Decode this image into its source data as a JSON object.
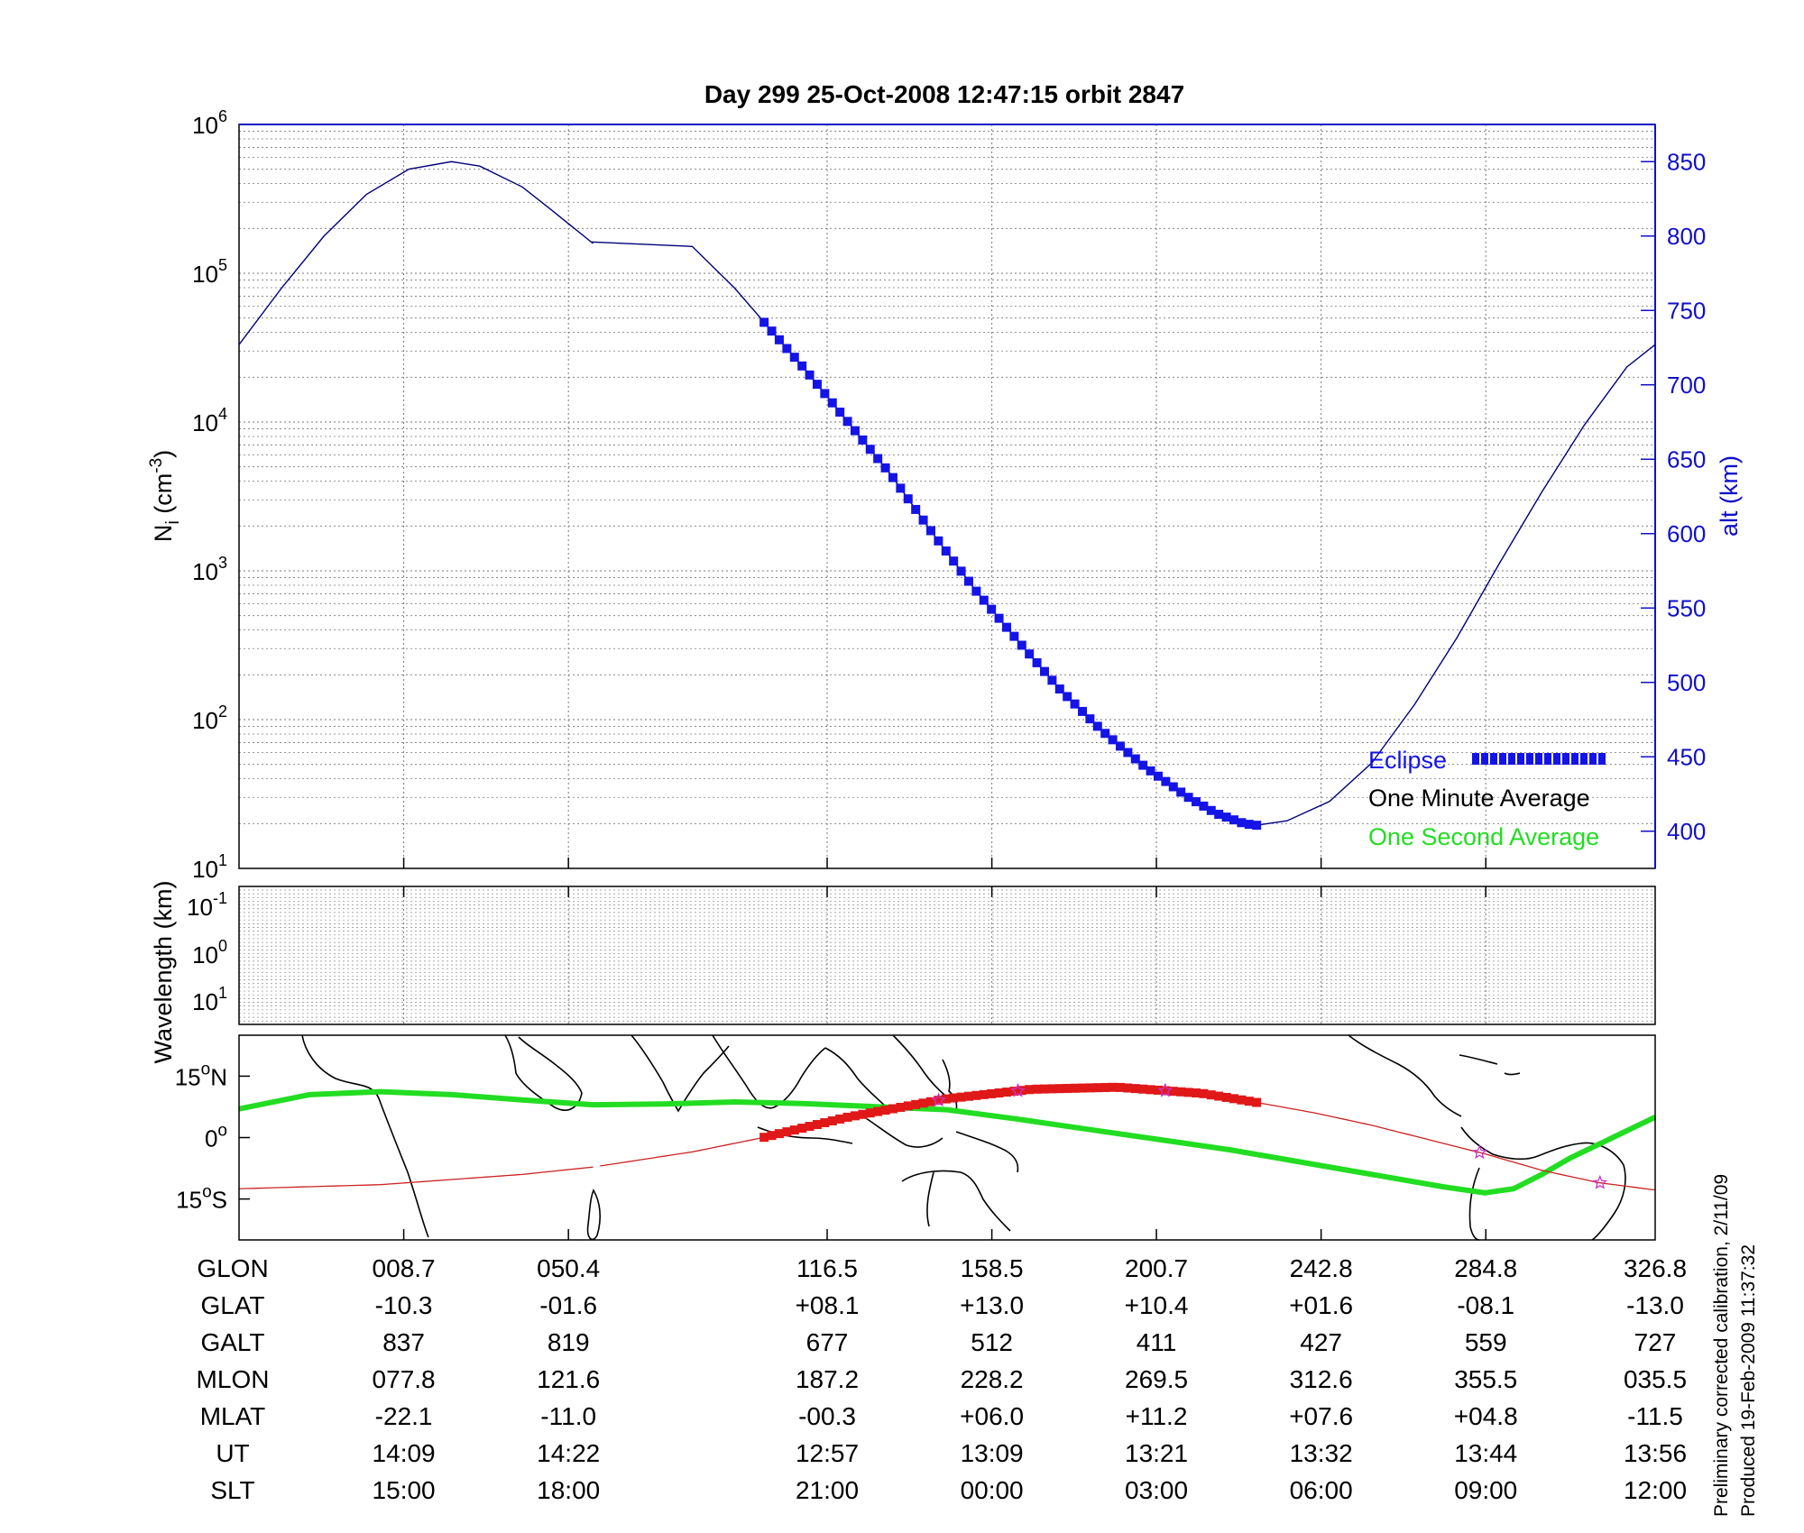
{
  "chart_data": {
    "title": "Day 299  25-Oct-2008 12:47:15   orbit 2847",
    "type": "line",
    "panels": {
      "density": {
        "ylabel": "N_i (cm^-3)",
        "ylabel_main": "N",
        "ylabel_sub": "i",
        "ylabel_unit_open": " (cm",
        "ylabel_unit_exp": "-3",
        "ylabel_unit_close": ")",
        "y_scale": "log",
        "ylim": [
          10,
          1000000
        ],
        "y_ticks": [
          {
            "base": "10",
            "exp": "1",
            "v": 10
          },
          {
            "base": "10",
            "exp": "2",
            "v": 100
          },
          {
            "base": "10",
            "exp": "3",
            "v": 1000
          },
          {
            "base": "10",
            "exp": "4",
            "v": 10000
          },
          {
            "base": "10",
            "exp": "5",
            "v": 100000
          },
          {
            "base": "10",
            "exp": "6",
            "v": 1000000
          }
        ],
        "y2label": "alt (km)",
        "y2lim": [
          375,
          875
        ],
        "y2_ticks": [
          "400",
          "450",
          "500",
          "550",
          "600",
          "650",
          "700",
          "750",
          "800",
          "850"
        ],
        "grid": true,
        "legend_position": "bottom-right",
        "legend": [
          {
            "label": "Eclipse",
            "color": "#1414e6"
          },
          {
            "label": "One Minute Average",
            "color": "#000000"
          },
          {
            "label": "One Second Average",
            "color": "#22dd22"
          }
        ]
      },
      "wavelength": {
        "ylabel": "Wavelength (km)",
        "y_ticks": [
          {
            "base": "10",
            "exp": "-1"
          },
          {
            "base": "10",
            "exp": "0"
          },
          {
            "base": "10",
            "exp": "1"
          }
        ],
        "grid": true
      },
      "map": {
        "y_ticks": [
          {
            "deg": "15",
            "hemi": "N",
            "v": 15
          },
          {
            "deg": "0",
            "hemi": "",
            "v": 0
          },
          {
            "deg": "15",
            "hemi": "S",
            "v": -15
          }
        ],
        "ylim": [
          -25,
          25
        ]
      }
    },
    "x_tick_fractions": [
      0.0,
      0.1163,
      0.2326,
      0.4153,
      0.5316,
      0.6478,
      0.7641,
      0.8804,
      1.0
    ],
    "altitude_series": {
      "name": "altitude",
      "color": "#00007a",
      "x": [
        0.0,
        0.03,
        0.06,
        0.09,
        0.12,
        0.15,
        0.17,
        0.2,
        0.22,
        0.25,
        0.2486,
        0.32,
        0.35,
        0.37,
        0.3708,
        0.4,
        0.43,
        0.46,
        0.49,
        0.52,
        0.55,
        0.58,
        0.61,
        0.64,
        0.67,
        0.69,
        0.71,
        0.7186,
        0.74,
        0.77,
        0.8,
        0.83,
        0.86,
        0.89,
        0.92,
        0.95,
        0.98,
        1.0
      ],
      "alt_km": [
        727,
        765,
        800,
        828,
        845,
        850,
        847,
        833,
        818,
        795,
        796,
        793,
        765,
        743,
        742,
        710,
        675,
        640,
        600,
        562,
        528,
        495,
        467,
        443,
        423,
        412,
        405,
        404,
        407,
        420,
        446,
        485,
        530,
        580,
        628,
        673,
        712,
        727
      ],
      "gap_after_index": 9
    },
    "eclipse_segment": {
      "x_start": 0.3708,
      "x_end": 0.7186
    },
    "ground_track": {
      "name": "ground track",
      "color": "#cc2222",
      "x": [
        0.0,
        0.1,
        0.2,
        0.25,
        0.32,
        0.37,
        0.43,
        0.5,
        0.56,
        0.62,
        0.68,
        0.72,
        0.76,
        0.8,
        0.84,
        0.88,
        0.92,
        0.96,
        1.0
      ],
      "lat": [
        -12.5,
        -11.5,
        -9,
        -7.2,
        -3.5,
        0,
        5,
        9.5,
        11.8,
        12.3,
        10.8,
        8.5,
        6,
        3,
        -0.5,
        -4,
        -8,
        -11,
        -12.8
      ]
    },
    "one_second_track": {
      "color": "#22dd22",
      "x": [
        0.0,
        0.05,
        0.1,
        0.15,
        0.2,
        0.25,
        0.3,
        0.35,
        0.4,
        0.5,
        0.55,
        0.6,
        0.65,
        0.7,
        0.75,
        0.8,
        0.85,
        0.88,
        0.9,
        0.92,
        0.94,
        0.97,
        1.0
      ],
      "lat": [
        7,
        10.5,
        11.2,
        10.5,
        9.2,
        8,
        8.2,
        8.7,
        8.3,
        6.8,
        4.5,
        2,
        -0.5,
        -3,
        -6,
        -9,
        -12,
        -13.5,
        -12.5,
        -9,
        -5,
        0,
        5
      ]
    },
    "table": {
      "rows": [
        {
          "label": "GLON",
          "values": [
            "008.7",
            "050.4",
            "116.5",
            "158.5",
            "200.7",
            "242.8",
            "284.8",
            "326.8"
          ]
        },
        {
          "label": "GLAT",
          "values": [
            "-10.3",
            "-01.6",
            "+08.1",
            "+13.0",
            "+10.4",
            "+01.6",
            "-08.1",
            "-13.0"
          ]
        },
        {
          "label": "GALT",
          "values": [
            "837",
            "819",
            "677",
            "512",
            "411",
            "427",
            "559",
            "727"
          ]
        },
        {
          "label": "MLON",
          "values": [
            "077.8",
            "121.6",
            "187.2",
            "228.2",
            "269.5",
            "312.6",
            "355.5",
            "035.5"
          ]
        },
        {
          "label": "MLAT",
          "values": [
            "-22.1",
            "-11.0",
            "-00.3",
            "+06.0",
            "+11.2",
            "+07.6",
            "+04.8",
            "-11.5"
          ]
        },
        {
          "label": "UT",
          "values": [
            "14:09",
            "14:22",
            "12:57",
            "13:09",
            "13:21",
            "13:32",
            "13:44",
            "13:56"
          ]
        },
        {
          "label": "SLT",
          "values": [
            "15:00",
            "18:00",
            "21:00",
            "00:00",
            "03:00",
            "06:00",
            "09:00",
            "12:00"
          ]
        }
      ]
    },
    "notes": {
      "line1": "Preliminary corrected calibration, 2/11/09",
      "line2": "Produced 19-Feb-2009 11:37:32"
    },
    "colors": {
      "axis_blue": "#1010c8",
      "eclipse": "#1414e6",
      "track_red": "#e01818",
      "star": "#cc33cc"
    }
  }
}
